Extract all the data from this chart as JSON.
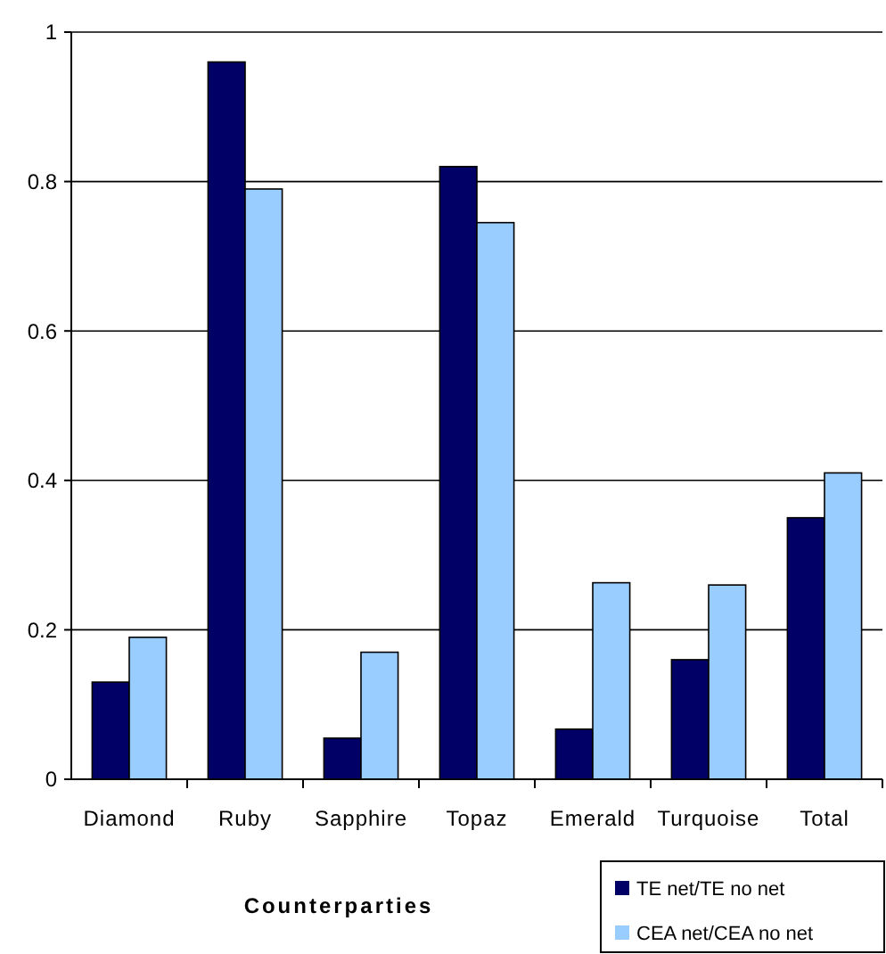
{
  "chart_data": {
    "type": "bar",
    "xlabel": "Counterparties",
    "categories": [
      "Diamond",
      "Ruby",
      "Sapphire",
      "Topaz",
      "Emerald",
      "Turquoise",
      "Total"
    ],
    "series": [
      {
        "name": "TE net/TE no net",
        "color": "#000066",
        "values": [
          0.13,
          0.96,
          0.055,
          0.82,
          0.067,
          0.16,
          0.35
        ]
      },
      {
        "name": "CEA net/CEA no net",
        "color": "#99ccff",
        "values": [
          0.19,
          0.79,
          0.17,
          0.745,
          0.263,
          0.26,
          0.41
        ]
      }
    ],
    "ylim": [
      0,
      1
    ],
    "yticks": [
      0,
      0.2,
      0.4,
      0.6,
      0.8,
      1
    ],
    "grid": "y",
    "legend": "bottom right"
  }
}
